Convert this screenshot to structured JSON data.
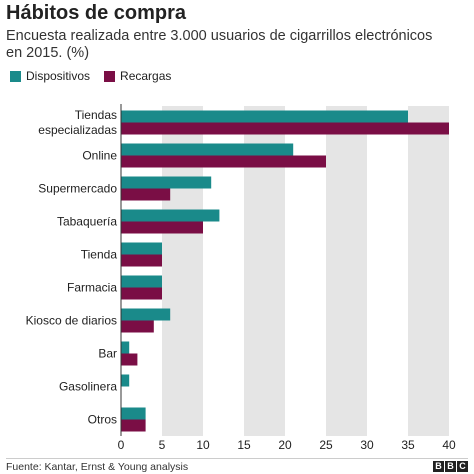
{
  "title": "Hábitos de compra",
  "subtitle": "Encuesta realizada entre 3.000 usuarios de cigarrillos electrónicos en 2015. (%)",
  "source": "Fuente: Kantar, Ernst & Young analysis",
  "logo": [
    "B",
    "B",
    "C"
  ],
  "colors": {
    "dispositivos": "#1a8a8a",
    "recargas": "#7a0e45",
    "band": "#e5e5e5",
    "axis": "#333333"
  },
  "chart_data": {
    "type": "bar",
    "orientation": "horizontal",
    "categories": [
      "Tiendas especializadas",
      "Online",
      "Supermercado",
      "Tabaquería",
      "Tienda",
      "Farmacia",
      "Kiosco de diarios",
      "Bar",
      "Gasolinera",
      "Otros"
    ],
    "category_lines": [
      [
        "Tiendas",
        "especializadas"
      ],
      [
        "Online"
      ],
      [
        "Supermercado"
      ],
      [
        "Tabaquería"
      ],
      [
        "Tienda"
      ],
      [
        "Farmacia"
      ],
      [
        "Kiosco de diarios"
      ],
      [
        "Bar"
      ],
      [
        "Gasolinera"
      ],
      [
        "Otros"
      ]
    ],
    "series": [
      {
        "name": "Dispositivos",
        "values": [
          35,
          21,
          11,
          12,
          5,
          5,
          6,
          1,
          1,
          3
        ]
      },
      {
        "name": "Recargas",
        "values": [
          40,
          25,
          6,
          10,
          5,
          5,
          4,
          2,
          0,
          3
        ]
      }
    ],
    "xlim": [
      0,
      40
    ],
    "xticks": [
      0,
      5,
      10,
      15,
      20,
      25,
      30,
      35,
      40
    ],
    "grid": "alternating vertical bands",
    "legend": "top-left"
  }
}
